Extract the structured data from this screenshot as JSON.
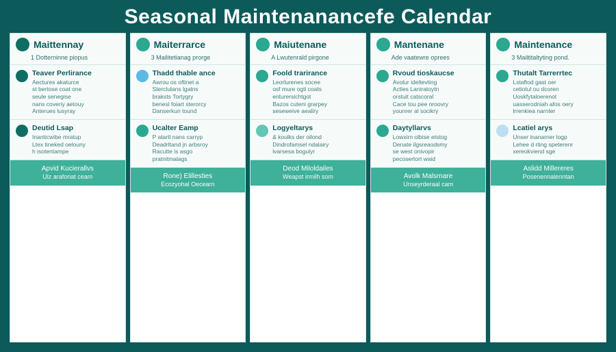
{
  "title": "Seasonal Maintenanancefe Calendar",
  "colors": {
    "frame_bg": "#0d5a5a",
    "col_bg": "#f6fbfa",
    "border": "#cfe6e2",
    "title_text": "#ffffff",
    "header_text": "#0d5a5a",
    "body_text": "#3d7c77",
    "footer_bg": "#3fb09a",
    "footer_text": "#ffffff",
    "dot_dark_teal": "#0f6e64",
    "dot_teal": "#2aa890",
    "dot_light_teal": "#5fc7b3",
    "dot_sky": "#5cb9e6",
    "dot_pale_blue": "#bcdff2"
  },
  "columns": [
    {
      "header_dot_color": "#0f6e64",
      "header_label": "Maittennay",
      "subhead": "1 Dotterninne piopus",
      "sections": [
        {
          "dot_color": "#0f6e64",
          "title": "Teaver Perlirance",
          "lines": "Aectures akaturce\nst bertose coat one\nseule senegise\nnans coveriy aetouy\nAnterues lusyray"
        },
        {
          "dot_color": "#0f6e64",
          "title": "Deutid Lsap",
          "lines": "Inanticwibe mratup\nLtex tineked oelouny\nh isotentampe"
        }
      ],
      "footer1": "Apvid Kucierallvs",
      "footer2": "Ulz araforiat ceam"
    },
    {
      "header_dot_color": "#2aa890",
      "header_label": "Maiterrarce",
      "subhead": "3 Mailitetianag prorge",
      "sections": [
        {
          "dot_color": "#5cb9e6",
          "title": "Thadd thable ance",
          "lines": "Awrou os oftinet a\nSterclulans lgatns\nbraksts Tortygry\nbenesl foiart sterorcy\nDanserkun tound"
        },
        {
          "dot_color": "#2aa890",
          "title": "Ucalter Eamp",
          "lines": "P atartl nans carryp\nDeadrltand jn arbsroy\nRacutte is asgo\npratnitmalags"
        }
      ],
      "footer1": "Rone) Elillesties",
      "footer2": "Ecozyohal Oecearn"
    },
    {
      "header_dot_color": "#2aa890",
      "header_label": "Maiutenane",
      "subhead": "A Lwutenrald pirgone",
      "sections": [
        {
          "dot_color": "#2aa890",
          "title": "Foold trarirance",
          "lines": "Leorlurenes socee\nosf mure ogti coats\nenturersichtgot\nBazos cuteni grarpey\nseseweive aealiry"
        },
        {
          "dot_color": "#5fc7b3",
          "title": "Logyeltarys",
          "lines": "& koulks der oilond\nDindrofamsel ndalairy\nlvarsesa bogulyr"
        }
      ],
      "footer1": "Deod Miloldailes",
      "footer2": "Weapst irmilh som"
    },
    {
      "header_dot_color": "#2aa890",
      "header_label": "Mantenane",
      "subhead": "Ade vaatewre oprees",
      "sections": [
        {
          "dot_color": "#2aa890",
          "title": "Rvoud tioskaucse",
          "lines": "Avolur ideltevting\nActles Laniratoytn\norstuit catscoral\nCace tou pee nroovry\nyounrer al socikry"
        },
        {
          "dot_color": "#2aa890",
          "title": "Daytyllarvs",
          "lines": "Lowxirn olbise etstog\nDenate ilgsreaodsmy\nse west onivopir\npecosertort waid"
        }
      ],
      "footer1": "Avolk Malsrnare",
      "footer2": "Unseyrderaal cam"
    },
    {
      "header_dot_color": "#2aa890",
      "header_label": "Maintenance",
      "subhead": "3 Mailtitaltyting pond.",
      "sections": [
        {
          "dot_color": "#2aa890",
          "title": "Thutalt Tarrerrtec",
          "lines": "Lstaftod gast oer\ncetiotul ou dcoren\nUoskfytaloerenot\nuasserodniah afos oery\nlrrenkiea narnter"
        },
        {
          "dot_color": "#bcdff2",
          "title": "Lcatiel arys",
          "lines": "Unser inanarner logp\nLehee d rting speterenr\nxereokviend sge"
        }
      ],
      "footer1": "Aslidd Millereres",
      "footer2": "Posenennalenntan"
    }
  ]
}
